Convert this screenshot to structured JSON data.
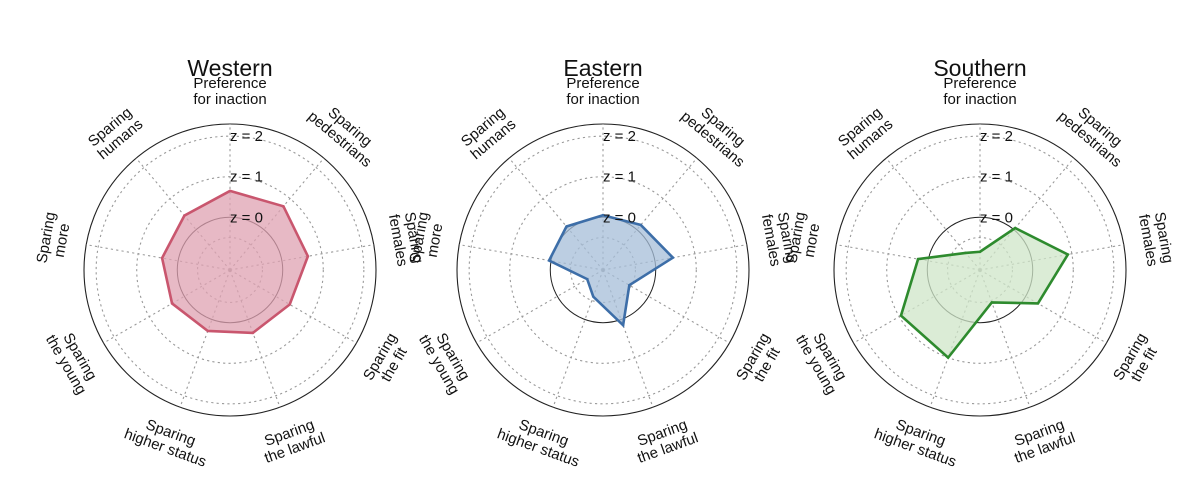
{
  "chart_data": [
    {
      "type": "radar",
      "title": "Western",
      "axes": [
        [
          "Preference",
          "for inaction"
        ],
        [
          "Sparing",
          "pedestrians"
        ],
        [
          "Sparing",
          "females"
        ],
        [
          "Sparing",
          "the fit"
        ],
        [
          "Sparing",
          "the lawful"
        ],
        [
          "Sparing",
          "higher status"
        ],
        [
          "Sparing",
          "the young"
        ],
        [
          "Sparing",
          "more"
        ],
        [
          "Sparing",
          "humans"
        ]
      ],
      "ticks": [
        "z = 2",
        "z = 1",
        "z = 0"
      ],
      "tick_values": [
        2,
        1,
        0
      ],
      "rlim": [
        -1.3,
        2.3
      ],
      "grid": true,
      "values": [
        0.65,
        0.75,
        0.65,
        0.4,
        0.35,
        0.3,
        0.35,
        0.4,
        0.45
      ],
      "color": "#c9566e",
      "fill": "#dfa2b1"
    },
    {
      "type": "radar",
      "title": "Eastern",
      "axes": [
        [
          "Preference",
          "for inaction"
        ],
        [
          "Sparing",
          "pedestrians"
        ],
        [
          "Sparing",
          "females"
        ],
        [
          "Sparing",
          "the fit"
        ],
        [
          "Sparing",
          "the lawful"
        ],
        [
          "Sparing",
          "higher status"
        ],
        [
          "Sparing",
          "the young"
        ],
        [
          "Sparing",
          "more"
        ],
        [
          "Sparing",
          "humans"
        ]
      ],
      "ticks": [
        "z = 2",
        "z = 1",
        "z = 0"
      ],
      "tick_values": [
        2,
        1,
        0
      ],
      "rlim": [
        -1.3,
        2.3
      ],
      "grid": true,
      "values": [
        0.05,
        0.15,
        0.45,
        -0.55,
        0.15,
        -0.6,
        -0.85,
        0.05,
        0.1
      ],
      "color": "#3d6ea8",
      "fill": "#a5bed8"
    },
    {
      "type": "radar",
      "title": "Southern",
      "axes": [
        [
          "Preference",
          "for inaction"
        ],
        [
          "Sparing",
          "pedestrians"
        ],
        [
          "Sparing",
          "females"
        ],
        [
          "Sparing",
          "the fit"
        ],
        [
          "Sparing",
          "the lawful"
        ],
        [
          "Sparing",
          "higher status"
        ],
        [
          "Sparing",
          "the young"
        ],
        [
          "Sparing",
          "more"
        ],
        [
          "Sparing",
          "humans"
        ]
      ],
      "ticks": [
        "z = 2",
        "z = 1",
        "z = 0"
      ],
      "tick_values": [
        2,
        1,
        0
      ],
      "rlim": [
        -1.3,
        2.3
      ],
      "grid": true,
      "values": [
        -0.85,
        0.05,
        0.9,
        0.35,
        -0.45,
        1.0,
        0.95,
        0.25,
        -0.75
      ],
      "color": "#2e8b2e",
      "fill": "#cfe6c8"
    }
  ]
}
